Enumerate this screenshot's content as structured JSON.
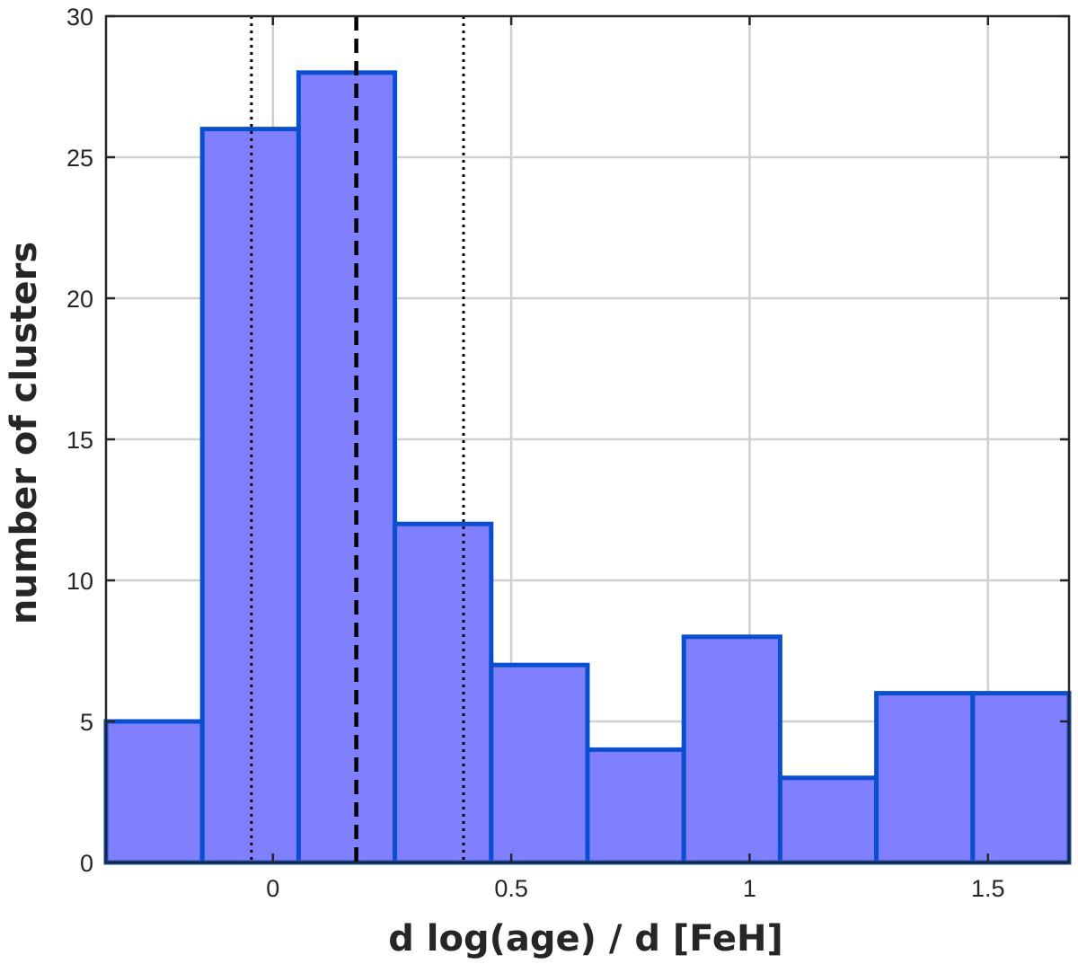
{
  "chart_data": {
    "type": "bar",
    "subtype": "histogram",
    "xlabel": "d log(age) / d [FeH]",
    "ylabel": "number of clusters",
    "xlim": [
      -0.35,
      1.67
    ],
    "ylim": [
      0,
      30
    ],
    "grid": true,
    "bar_fill": "#8080ff",
    "bar_edge": "#0a4fd0",
    "bin_edges": [
      -0.35,
      -0.148,
      0.054,
      0.256,
      0.458,
      0.66,
      0.862,
      1.064,
      1.266,
      1.468,
      1.67
    ],
    "counts": [
      5,
      26,
      28,
      12,
      7,
      4,
      8,
      3,
      6,
      6
    ],
    "reference_lines": [
      {
        "x": -0.045,
        "style": "dotted",
        "color": "#000000"
      },
      {
        "x": 0.175,
        "style": "dashed",
        "color": "#000000"
      },
      {
        "x": 0.4,
        "style": "dotted",
        "color": "#000000"
      }
    ],
    "x_ticks": [
      {
        "value": 0,
        "label": "0"
      },
      {
        "value": 0.5,
        "label": "0.5"
      },
      {
        "value": 1,
        "label": "1"
      },
      {
        "value": 1.5,
        "label": "1.5"
      }
    ],
    "y_ticks": [
      {
        "value": 0,
        "label": "0"
      },
      {
        "value": 5,
        "label": "5"
      },
      {
        "value": 10,
        "label": "10"
      },
      {
        "value": 15,
        "label": "15"
      },
      {
        "value": 20,
        "label": "20"
      },
      {
        "value": 25,
        "label": "25"
      },
      {
        "value": 30,
        "label": "30"
      }
    ]
  }
}
